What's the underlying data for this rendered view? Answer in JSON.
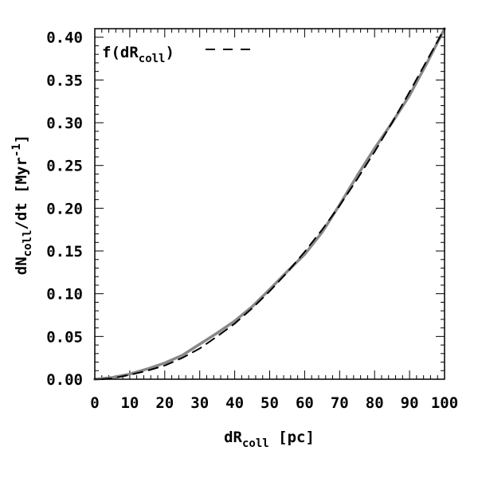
{
  "chart_data": {
    "type": "line",
    "title": "",
    "xlabel": {
      "main": "dR",
      "sub": "coll",
      "rest": " [pc]"
    },
    "ylabel": {
      "main": "dN",
      "sub": "coll",
      "mid": "/dt [Myr",
      "sup": "-1",
      "end": "]"
    },
    "xlim": [
      0,
      100
    ],
    "ylim": [
      0,
      0.41
    ],
    "xticks": [
      0,
      10,
      20,
      30,
      40,
      50,
      60,
      70,
      80,
      90,
      100
    ],
    "xtick_labels": [
      "0",
      "10",
      "20",
      "30",
      "40",
      "50",
      "60",
      "70",
      "80",
      "90",
      "100"
    ],
    "yticks": [
      0.0,
      0.05,
      0.1,
      0.15,
      0.2,
      0.25,
      0.3,
      0.35,
      0.4
    ],
    "ytick_labels": [
      "0.00",
      "0.05",
      "0.10",
      "0.15",
      "0.20",
      "0.25",
      "0.30",
      "0.35",
      "0.40"
    ],
    "grid": false,
    "legend": {
      "position": "top-left",
      "entries": [
        {
          "label_main": "f(dR",
          "label_sub": "coll",
          "label_end": ")",
          "style": "dashed",
          "color": "#000000"
        }
      ]
    },
    "series": [
      {
        "style": "solid",
        "color": "#888888",
        "x": [
          0,
          5,
          10,
          15,
          20,
          25,
          30,
          35,
          40,
          45,
          50,
          55,
          60,
          65,
          70,
          75,
          80,
          85,
          90,
          95,
          100
        ],
        "y": [
          0.0,
          0.002,
          0.006,
          0.012,
          0.019,
          0.028,
          0.041,
          0.054,
          0.068,
          0.085,
          0.105,
          0.126,
          0.146,
          0.172,
          0.204,
          0.238,
          0.27,
          0.3,
          0.332,
          0.37,
          0.41
        ]
      },
      {
        "style": "dashed",
        "color": "#000000",
        "x": [
          2,
          5,
          10,
          15,
          20,
          25,
          30,
          35,
          40,
          45,
          50,
          55,
          60,
          65,
          70,
          75,
          80,
          85,
          90,
          95,
          100
        ],
        "y": [
          0.0,
          0.001,
          0.005,
          0.01,
          0.016,
          0.025,
          0.036,
          0.05,
          0.065,
          0.083,
          0.103,
          0.125,
          0.149,
          0.175,
          0.203,
          0.234,
          0.266,
          0.3,
          0.336,
          0.373,
          0.41
        ]
      }
    ]
  }
}
